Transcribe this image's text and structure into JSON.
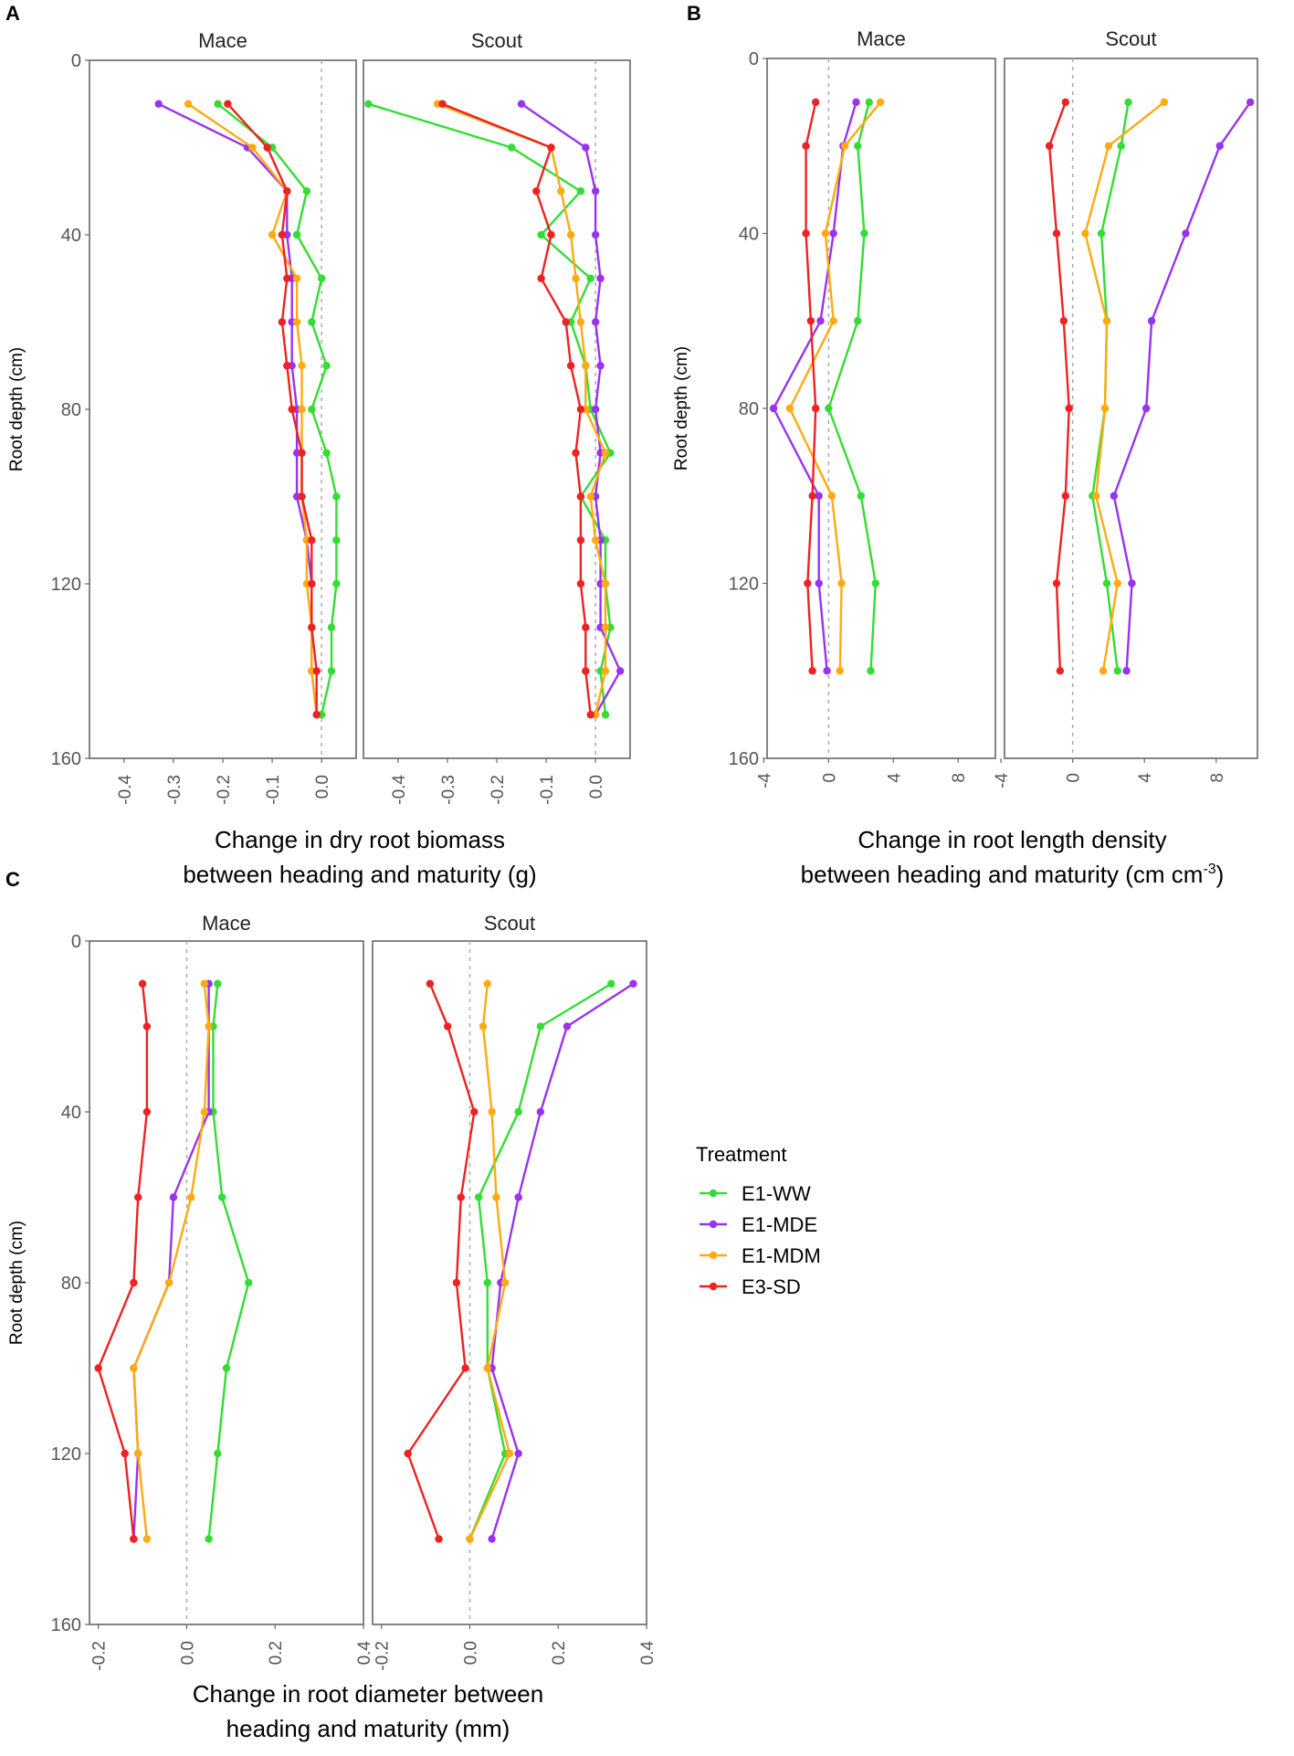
{
  "colors": {
    "E1-WW": "#33dd33",
    "E1-MDE": "#9933ee",
    "E1-MDM": "#ffaa11",
    "E3-SD": "#ee2222",
    "frame": "#666666",
    "zero_line": "#aaaaaa",
    "tick_text": "#555555"
  },
  "legend": {
    "title": "Treatment",
    "entries": [
      "E1-WW",
      "E1-MDE",
      "E1-MDM",
      "E3-SD"
    ]
  },
  "chart_data": [
    {
      "type": "line",
      "panel_label": "A",
      "xlabel_lines": [
        "Change in dry root biomass",
        "between heading and maturity (g)"
      ],
      "ylabel": "Root depth (cm)",
      "ylim": [
        0,
        160
      ],
      "yticks": [
        0,
        40,
        80,
        120,
        160
      ],
      "xlim": [
        -0.47,
        0.07
      ],
      "xticks": [
        -0.4,
        -0.3,
        -0.2,
        -0.1,
        0.0
      ],
      "xtick_labels": [
        "-0.4",
        "-0.3",
        "-0.2",
        "-0.1",
        "0.0"
      ],
      "facets": [
        {
          "name": "Mace",
          "series": [
            {
              "name": "E1-WW",
              "depth": [
                10,
                20,
                30,
                40,
                50,
                60,
                70,
                80,
                90,
                100,
                110,
                120,
                130,
                140,
                150
              ],
              "values": [
                -0.21,
                -0.1,
                -0.03,
                -0.05,
                0.0,
                -0.02,
                0.01,
                -0.02,
                0.01,
                0.03,
                0.03,
                0.03,
                0.02,
                0.02,
                0.0
              ]
            },
            {
              "name": "E1-MDE",
              "depth": [
                10,
                20,
                30,
                40,
                50,
                60,
                70,
                80,
                90,
                100,
                110,
                120,
                130,
                140,
                150
              ],
              "values": [
                -0.33,
                -0.15,
                -0.07,
                -0.07,
                -0.06,
                -0.06,
                -0.06,
                -0.05,
                -0.05,
                -0.05,
                -0.03,
                -0.02,
                -0.02,
                -0.02,
                -0.01
              ]
            },
            {
              "name": "E1-MDM",
              "depth": [
                10,
                20,
                30,
                40,
                50,
                60,
                70,
                80,
                90,
                100,
                110,
                120,
                130,
                140,
                150
              ],
              "values": [
                -0.27,
                -0.14,
                -0.07,
                -0.1,
                -0.05,
                -0.05,
                -0.04,
                -0.04,
                -0.04,
                -0.04,
                -0.03,
                -0.03,
                -0.02,
                -0.02,
                -0.01
              ]
            },
            {
              "name": "E3-SD",
              "depth": [
                10,
                20,
                30,
                40,
                50,
                60,
                70,
                80,
                90,
                100,
                110,
                120,
                130,
                140,
                150
              ],
              "values": [
                -0.19,
                -0.11,
                -0.07,
                -0.08,
                -0.07,
                -0.08,
                -0.07,
                -0.06,
                -0.04,
                -0.04,
                -0.02,
                -0.02,
                -0.02,
                -0.01,
                -0.01
              ]
            }
          ]
        },
        {
          "name": "Scout",
          "series": [
            {
              "name": "E1-WW",
              "depth": [
                10,
                20,
                30,
                40,
                50,
                60,
                70,
                80,
                90,
                100,
                110,
                120,
                130,
                140,
                150
              ],
              "values": [
                -0.46,
                -0.17,
                -0.03,
                -0.11,
                -0.01,
                -0.05,
                -0.02,
                -0.01,
                0.03,
                -0.03,
                0.02,
                0.02,
                0.03,
                0.01,
                0.02
              ]
            },
            {
              "name": "E1-MDE",
              "depth": [
                10,
                20,
                30,
                40,
                50,
                60,
                70,
                80,
                90,
                100,
                110,
                120,
                130,
                140,
                150
              ],
              "values": [
                -0.15,
                -0.02,
                0.0,
                0.0,
                0.01,
                0.0,
                0.01,
                0.0,
                0.01,
                0.0,
                0.01,
                0.01,
                0.01,
                0.05,
                0.0
              ]
            },
            {
              "name": "E1-MDM",
              "depth": [
                10,
                20,
                30,
                40,
                50,
                60,
                70,
                80,
                90,
                100,
                110,
                120,
                130,
                140,
                150
              ],
              "values": [
                -0.32,
                -0.09,
                -0.07,
                -0.05,
                -0.04,
                -0.03,
                -0.02,
                -0.02,
                0.02,
                -0.01,
                0.0,
                0.02,
                0.02,
                0.02,
                0.0
              ]
            },
            {
              "name": "E3-SD",
              "depth": [
                10,
                20,
                30,
                40,
                50,
                60,
                70,
                80,
                90,
                100,
                110,
                120,
                130,
                140,
                150
              ],
              "values": [
                -0.31,
                -0.09,
                -0.12,
                -0.09,
                -0.11,
                -0.06,
                -0.05,
                -0.03,
                -0.04,
                -0.03,
                -0.03,
                -0.03,
                -0.02,
                -0.02,
                -0.01
              ]
            }
          ]
        }
      ]
    },
    {
      "type": "line",
      "panel_label": "B",
      "xlabel_lines": [
        "Change in root length density",
        "between heading and maturity (cm cm"
      ],
      "xlabel_superscript": "-3",
      "xlabel_suffix": ")",
      "ylabel": "Root depth (cm)",
      "ylim": [
        0,
        160
      ],
      "yticks": [
        0,
        40,
        80,
        120,
        160
      ],
      "xlim": [
        -3.8,
        10.3
      ],
      "xticks": [
        -4,
        0,
        4,
        8
      ],
      "xtick_labels": [
        "-4",
        "0",
        "4",
        "8"
      ],
      "facets": [
        {
          "name": "Mace",
          "series": [
            {
              "name": "E1-WW",
              "depth": [
                10,
                20,
                40,
                60,
                80,
                100,
                120,
                140
              ],
              "values": [
                2.5,
                1.8,
                2.2,
                1.8,
                0.0,
                2.0,
                2.9,
                2.6
              ]
            },
            {
              "name": "E1-MDE",
              "depth": [
                10,
                20,
                40,
                60,
                80,
                100,
                120,
                140
              ],
              "values": [
                1.7,
                0.9,
                0.3,
                -0.5,
                -3.4,
                -0.6,
                -0.6,
                -0.1
              ]
            },
            {
              "name": "E1-MDM",
              "depth": [
                10,
                20,
                40,
                60,
                80,
                100,
                120,
                140
              ],
              "values": [
                3.2,
                1.0,
                -0.2,
                0.3,
                -2.4,
                0.2,
                0.8,
                0.7
              ]
            },
            {
              "name": "E3-SD",
              "depth": [
                10,
                20,
                40,
                60,
                80,
                100,
                120,
                140
              ],
              "values": [
                -0.8,
                -1.4,
                -1.4,
                -1.1,
                -0.8,
                -1.0,
                -1.3,
                -1.0
              ]
            }
          ]
        },
        {
          "name": "Scout",
          "series": [
            {
              "name": "E1-WW",
              "depth": [
                10,
                20,
                40,
                60,
                80,
                100,
                120,
                140
              ],
              "values": [
                3.1,
                2.7,
                1.6,
                1.9,
                1.8,
                1.1,
                1.9,
                2.5
              ]
            },
            {
              "name": "E1-MDE",
              "depth": [
                10,
                20,
                40,
                60,
                80,
                100,
                120,
                140
              ],
              "values": [
                9.9,
                8.2,
                6.3,
                4.4,
                4.1,
                2.3,
                3.3,
                3.0
              ]
            },
            {
              "name": "E1-MDM",
              "depth": [
                10,
                20,
                40,
                60,
                80,
                100,
                120,
                140
              ],
              "values": [
                5.1,
                2.0,
                0.7,
                1.9,
                1.8,
                1.3,
                2.5,
                1.7
              ]
            },
            {
              "name": "E3-SD",
              "depth": [
                10,
                20,
                40,
                60,
                80,
                100,
                120,
                140
              ],
              "values": [
                -0.4,
                -1.3,
                -0.9,
                -0.5,
                -0.2,
                -0.4,
                -0.9,
                -0.7
              ]
            }
          ]
        }
      ]
    },
    {
      "type": "line",
      "panel_label": "C",
      "xlabel_lines": [
        "Change in root diameter between",
        "heading and maturity (mm)"
      ],
      "ylabel": "Root depth (cm)",
      "ylim": [
        0,
        160
      ],
      "yticks": [
        0,
        40,
        80,
        120,
        160
      ],
      "xlim": [
        -0.22,
        0.4
      ],
      "xticks": [
        -0.2,
        0.0,
        0.2,
        0.4
      ],
      "xtick_labels": [
        "-0.2",
        "0.0",
        "0.2",
        "0.4"
      ],
      "facets": [
        {
          "name": "Mace",
          "series": [
            {
              "name": "E1-WW",
              "depth": [
                10,
                20,
                40,
                60,
                80,
                100,
                120,
                140
              ],
              "values": [
                0.07,
                0.06,
                0.06,
                0.08,
                0.14,
                0.09,
                0.07,
                0.05
              ]
            },
            {
              "name": "E1-MDE",
              "depth": [
                10,
                20,
                40,
                60,
                80,
                100,
                120,
                140
              ],
              "values": [
                0.05,
                0.05,
                0.05,
                -0.03,
                -0.04,
                -0.12,
                -0.11,
                -0.12
              ]
            },
            {
              "name": "E1-MDM",
              "depth": [
                10,
                20,
                40,
                60,
                80,
                100,
                120,
                140
              ],
              "values": [
                0.04,
                0.05,
                0.04,
                0.01,
                -0.04,
                -0.12,
                -0.11,
                -0.09
              ]
            },
            {
              "name": "E3-SD",
              "depth": [
                10,
                20,
                40,
                60,
                80,
                100,
                120,
                140
              ],
              "values": [
                -0.1,
                -0.09,
                -0.09,
                -0.11,
                -0.12,
                -0.2,
                -0.14,
                -0.12
              ]
            }
          ]
        },
        {
          "name": "Scout",
          "series": [
            {
              "name": "E1-WW",
              "depth": [
                10,
                20,
                40,
                60,
                80,
                100,
                120,
                140
              ],
              "values": [
                0.32,
                0.16,
                0.11,
                0.02,
                0.04,
                0.04,
                0.08,
                0.0
              ]
            },
            {
              "name": "E1-MDE",
              "depth": [
                10,
                20,
                40,
                60,
                80,
                100,
                120,
                140
              ],
              "values": [
                0.37,
                0.22,
                0.16,
                0.11,
                0.07,
                0.05,
                0.11,
                0.05
              ]
            },
            {
              "name": "E1-MDM",
              "depth": [
                10,
                20,
                40,
                60,
                80,
                100,
                120,
                140
              ],
              "values": [
                0.04,
                0.03,
                0.05,
                0.06,
                0.08,
                0.04,
                0.09,
                0.0
              ]
            },
            {
              "name": "E3-SD",
              "depth": [
                10,
                20,
                40,
                60,
                80,
                100,
                120,
                140
              ],
              "values": [
                -0.09,
                -0.05,
                0.01,
                -0.02,
                -0.03,
                -0.01,
                -0.14,
                -0.07
              ]
            }
          ]
        }
      ]
    }
  ]
}
